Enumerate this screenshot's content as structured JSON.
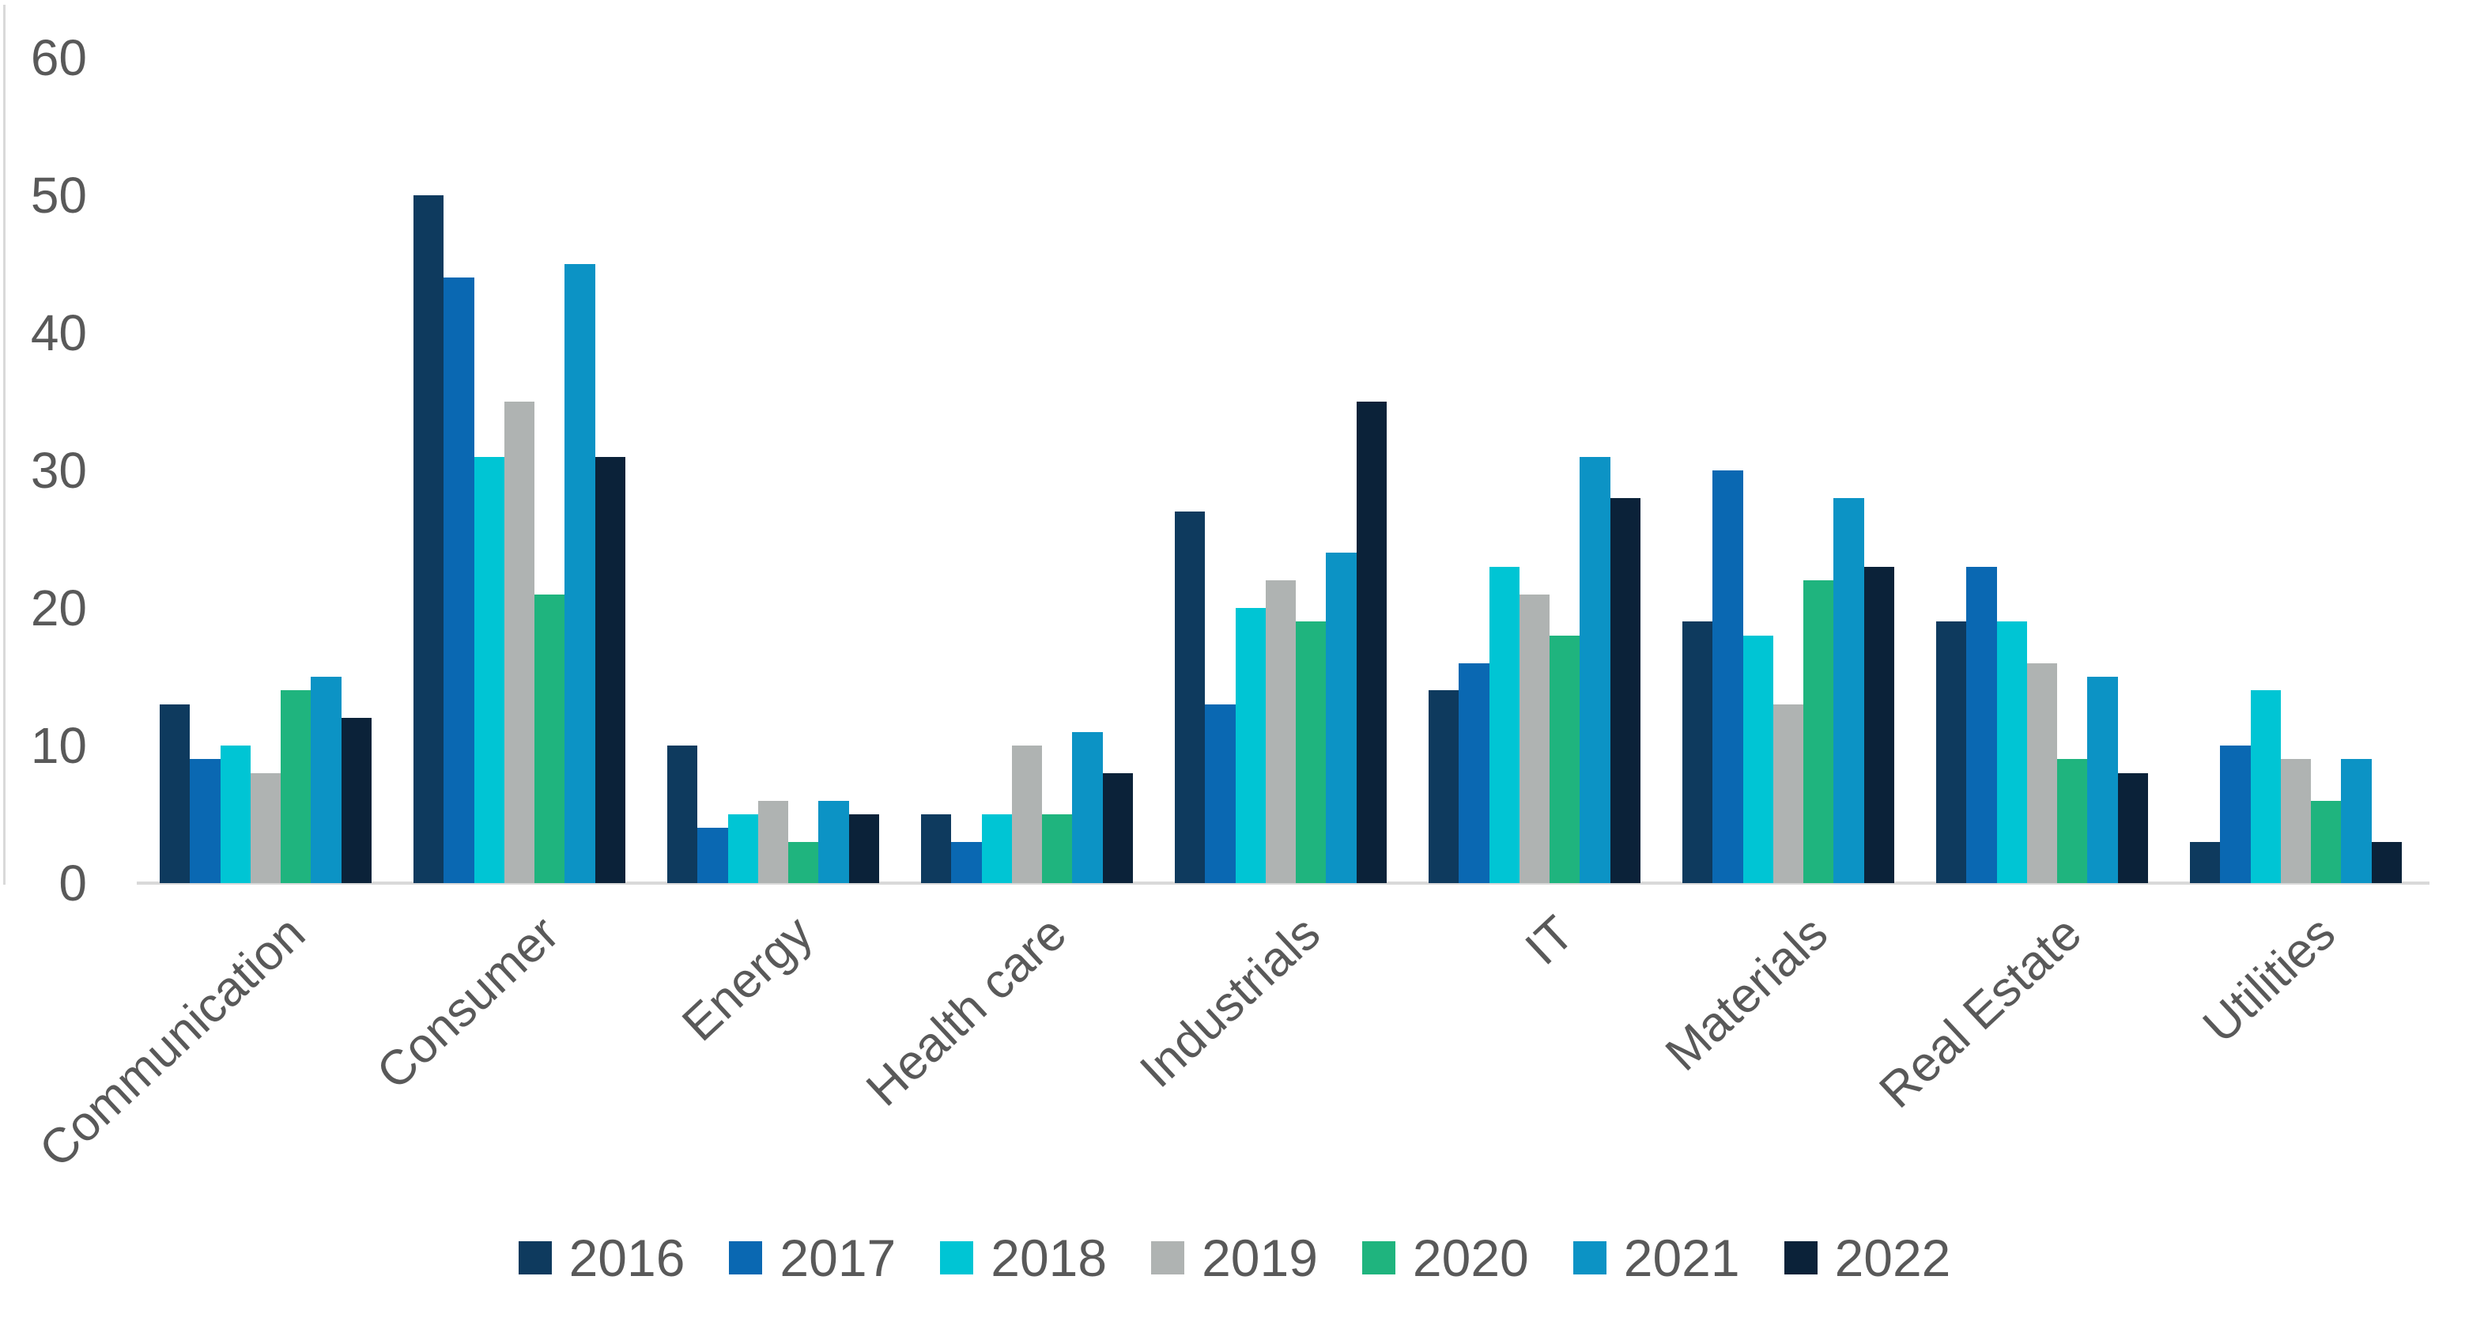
{
  "chart_data": {
    "type": "bar",
    "title": "",
    "subtitle": "",
    "categories": [
      "Communication",
      "Consumer",
      "Energy",
      "Health care",
      "Industrials",
      "IT",
      "Materials",
      "Real Estate",
      "Utilities"
    ],
    "series": [
      {
        "name": "2016",
        "color": "#0e3a5e",
        "values": [
          13,
          50,
          10,
          5,
          27,
          14,
          19,
          19,
          3
        ]
      },
      {
        "name": "2017",
        "color": "#0a68b2",
        "values": [
          9,
          44,
          4,
          3,
          13,
          16,
          30,
          23,
          10
        ]
      },
      {
        "name": "2018",
        "color": "#00c5d4",
        "values": [
          10,
          31,
          5,
          5,
          20,
          23,
          18,
          19,
          14
        ]
      },
      {
        "name": "2019",
        "color": "#afb3b2",
        "values": [
          8,
          35,
          6,
          10,
          22,
          21,
          13,
          16,
          9
        ]
      },
      {
        "name": "2020",
        "color": "#1fb47e",
        "values": [
          14,
          21,
          3,
          5,
          19,
          18,
          22,
          9,
          6
        ]
      },
      {
        "name": "2021",
        "color": "#0c93c5",
        "values": [
          15,
          45,
          6,
          11,
          24,
          31,
          28,
          15,
          9
        ]
      },
      {
        "name": "2022",
        "color": "#0b2239",
        "values": [
          12,
          31,
          5,
          8,
          35,
          28,
          23,
          8,
          3
        ]
      }
    ],
    "y_ticks": [
      0,
      10,
      20,
      30,
      40,
      50,
      60
    ],
    "ylim": [
      0,
      60
    ],
    "xlabel": "",
    "ylabel": "",
    "grid": false,
    "legend_position": "bottom",
    "axis_line_color": "#d9d9d9",
    "tick_label_color": "#595959"
  }
}
